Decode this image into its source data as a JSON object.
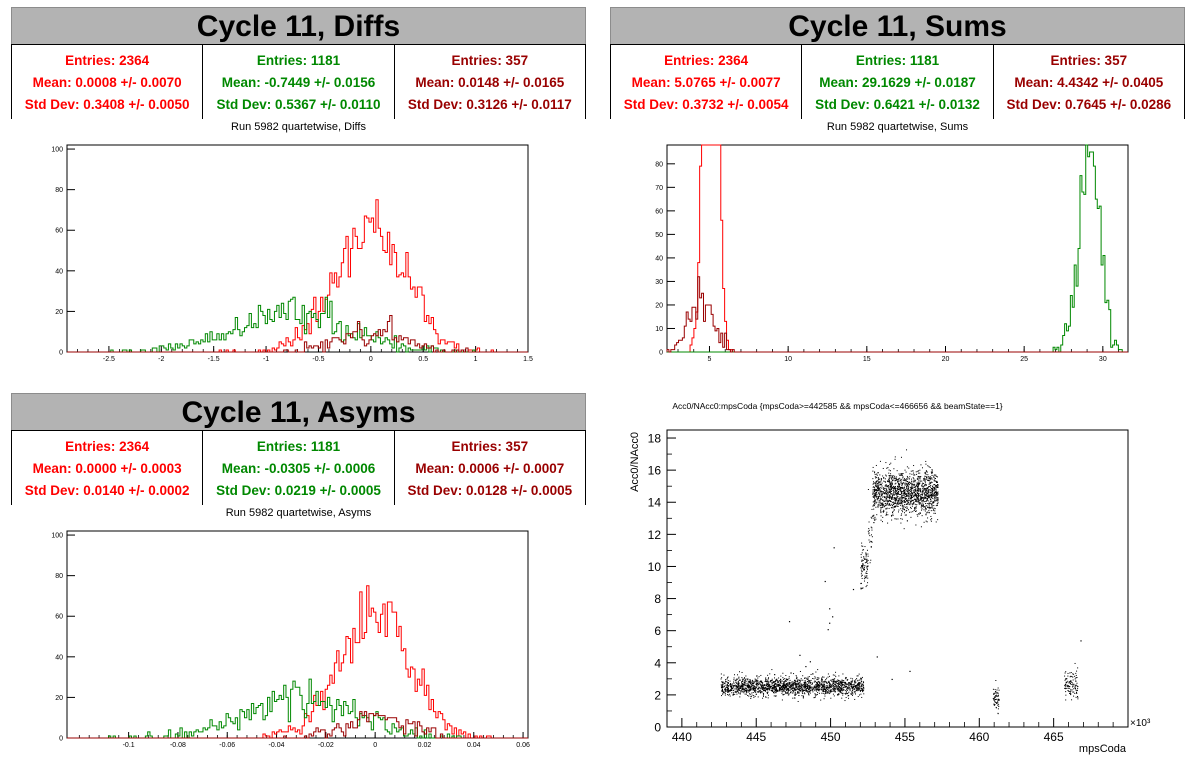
{
  "panels": {
    "diffs": {
      "banner": "Cycle 11, Diffs",
      "subtitle": "Run 5982 quartetwise, Diffs",
      "stats": [
        {
          "entries": "Entries: 2364",
          "mean": "Mean: 0.0008 +/- 0.0070",
          "std": "Std Dev: 0.3408 +/- 0.0050",
          "color": "#ff0000"
        },
        {
          "entries": "Entries: 1181",
          "mean": "Mean: -0.7449 +/- 0.0156",
          "std": "Std Dev: 0.5367 +/- 0.0110",
          "color": "#008800"
        },
        {
          "entries": "Entries: 357",
          "mean": "Mean: 0.0148 +/- 0.0165",
          "std": "Std Dev: 0.3126 +/- 0.0117",
          "color": "#990000"
        }
      ]
    },
    "sums": {
      "banner": "Cycle 11, Sums",
      "subtitle": "Run 5982 quartetwise, Sums",
      "stats": [
        {
          "entries": "Entries: 2364",
          "mean": "Mean: 5.0765 +/- 0.0077",
          "std": "Std Dev: 0.3732 +/- 0.0054",
          "color": "#ff0000"
        },
        {
          "entries": "Entries: 1181",
          "mean": "Mean: 29.1629 +/- 0.0187",
          "std": "Std Dev: 0.6421 +/- 0.0132",
          "color": "#008800"
        },
        {
          "entries": "Entries: 357",
          "mean": "Mean: 4.4342 +/- 0.0405",
          "std": "Std Dev: 0.7645 +/- 0.0286",
          "color": "#990000"
        }
      ]
    },
    "asyms": {
      "banner": "Cycle 11, Asyms",
      "subtitle": "Run 5982 quartetwise, Asyms",
      "stats": [
        {
          "entries": "Entries: 2364",
          "mean": "Mean: 0.0000 +/- 0.0003",
          "std": "Std Dev: 0.0140 +/- 0.0002",
          "color": "#ff0000"
        },
        {
          "entries": "Entries: 1181",
          "mean": "Mean: -0.0305 +/- 0.0006",
          "std": "Std Dev: 0.0219 +/- 0.0005",
          "color": "#008800"
        },
        {
          "entries": "Entries: 357",
          "mean": "Mean: 0.0006 +/- 0.0007",
          "std": "Std Dev: 0.0128 +/- 0.0005",
          "color": "#990000"
        }
      ]
    }
  },
  "chart_data": [
    {
      "type": "histogram",
      "key": "diffs",
      "xlim": [
        -2.9,
        1.5
      ],
      "ylim": [
        0,
        102
      ],
      "xticks": [
        -2.5,
        -2,
        -1.5,
        -1,
        -0.5,
        0,
        0.5,
        1,
        1.5
      ],
      "xtick_labels": [
        "-2.5",
        "-2",
        "-1.5",
        "-1",
        "-0.5",
        "0",
        "0.5",
        "1",
        "1.5"
      ],
      "yticks": [
        0,
        20,
        40,
        60,
        80,
        100
      ],
      "series": [
        {
          "entries": 2364,
          "mean": 0.0008,
          "std": 0.3408,
          "color": "#ff0000"
        },
        {
          "entries": 1181,
          "mean": -0.7449,
          "std": 0.5367,
          "color": "#008800"
        },
        {
          "entries": 357,
          "mean": 0.0148,
          "std": 0.3126,
          "color": "#990000"
        }
      ],
      "bins": {
        "min": -2.9,
        "max": 1.5,
        "count": 200
      }
    },
    {
      "type": "histogram",
      "key": "sums",
      "xlim": [
        2.3,
        31.6
      ],
      "ylim": [
        0,
        88
      ],
      "xticks": [
        5,
        10,
        15,
        20,
        25,
        30
      ],
      "xtick_labels": [
        "5",
        "10",
        "15",
        "20",
        "25",
        "30"
      ],
      "yticks": [
        0,
        10,
        20,
        30,
        40,
        50,
        60,
        70,
        80
      ],
      "series": [
        {
          "entries": 2364,
          "mean": 5.0765,
          "std": 0.3732,
          "color": "#ff0000"
        },
        {
          "entries": 1181,
          "mean": 29.1629,
          "std": 0.6421,
          "color": "#008800"
        },
        {
          "entries": 357,
          "mean": 4.4342,
          "std": 0.7645,
          "color": "#990000"
        }
      ],
      "bins": {
        "min": 2.3,
        "max": 31.6,
        "count": 240
      }
    },
    {
      "type": "histogram",
      "key": "asyms",
      "xlim": [
        -0.125,
        0.062
      ],
      "ylim": [
        0,
        102
      ],
      "xticks": [
        -0.1,
        -0.08,
        -0.06,
        -0.04,
        -0.02,
        0,
        0.02,
        0.04,
        0.06
      ],
      "xtick_labels": [
        "-0.1",
        "-0.08",
        "-0.06",
        "-0.04",
        "-0.02",
        "0",
        "0.02",
        "0.04",
        "0.06"
      ],
      "yticks": [
        0,
        20,
        40,
        60,
        80,
        100
      ],
      "series": [
        {
          "entries": 2364,
          "mean": 0.0,
          "std": 0.014,
          "color": "#ff0000"
        },
        {
          "entries": 1181,
          "mean": -0.0305,
          "std": 0.0219,
          "color": "#008800"
        },
        {
          "entries": 357,
          "mean": 0.0006,
          "std": 0.0128,
          "color": "#990000"
        }
      ],
      "bins": {
        "min": -0.125,
        "max": 0.062,
        "count": 200
      }
    },
    {
      "type": "scatter",
      "key": "scatter",
      "title": "Acc0/NAcc0:mpsCoda {mpsCoda>=442585 && mpsCoda<=466656 && beamState==1}",
      "xlabel": "mpsCoda",
      "ylabel": "Acc0/NAcc0",
      "xmultiplier": "×10³",
      "xlim": [
        439,
        470
      ],
      "ylim": [
        0,
        18.5
      ],
      "xticks": [
        440,
        445,
        450,
        455,
        460,
        465
      ],
      "xtick_labels": [
        "440",
        "445",
        "450",
        "455",
        "460",
        "465"
      ],
      "yticks": [
        0,
        2,
        4,
        6,
        8,
        10,
        12,
        14,
        16,
        18
      ],
      "ytick_labels": [
        "0",
        "2",
        "4",
        "6",
        "8",
        "10",
        "12",
        "14",
        "16",
        "18"
      ],
      "clusters": [
        {
          "x": [
            442.6,
            452.2
          ],
          "y": [
            2.55,
            0.28
          ],
          "n": 1800
        },
        {
          "x": [
            452.0,
            452.5
          ],
          "y": [
            10.0,
            0.6
          ],
          "n": 90
        },
        {
          "x": [
            452.5,
            452.9
          ],
          "y": [
            12.3,
            0.9
          ],
          "n": 30
        },
        {
          "x": [
            452.8,
            457.2
          ],
          "y": [
            14.6,
            0.7
          ],
          "n": 1500
        },
        {
          "x": [
            460.9,
            461.3
          ],
          "y": [
            1.9,
            0.35
          ],
          "n": 60
        },
        {
          "x": [
            465.7,
            466.6
          ],
          "y": [
            2.6,
            0.45
          ],
          "n": 110
        }
      ],
      "sparse": [
        [
          446.2,
          3.3
        ],
        [
          446.6,
          3.0
        ],
        [
          447.3,
          3.4
        ],
        [
          447.2,
          6.6
        ],
        [
          447.9,
          4.5
        ],
        [
          448.3,
          3.8
        ],
        [
          449.1,
          3.1
        ],
        [
          449.8,
          6.1
        ],
        [
          449.9,
          6.5
        ],
        [
          450.1,
          6.9
        ],
        [
          449.9,
          7.4
        ],
        [
          449.6,
          9.1
        ],
        [
          450.2,
          11.2
        ],
        [
          453.1,
          4.4
        ],
        [
          454.1,
          3.0
        ],
        [
          455.3,
          3.5
        ],
        [
          466.8,
          5.4
        ],
        [
          448.6,
          4.1
        ],
        [
          451.5,
          8.6
        ]
      ]
    }
  ]
}
